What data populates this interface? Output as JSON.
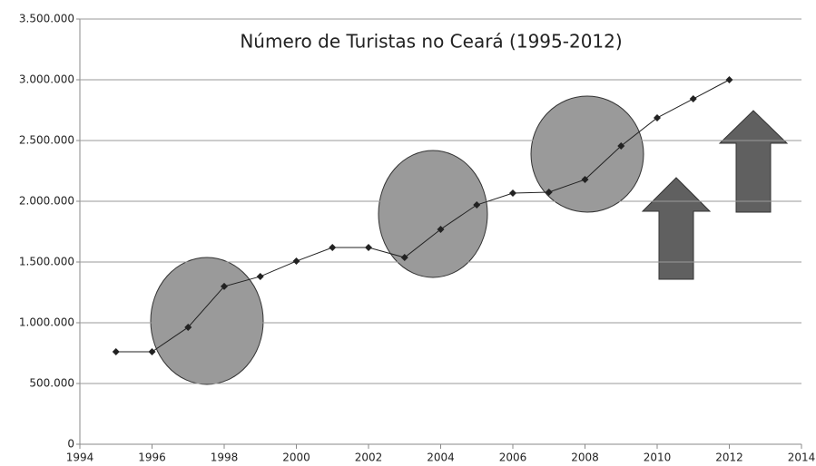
{
  "chart_data": {
    "type": "line",
    "title": "Número de Turistas no Ceará (1995-2012)",
    "x": [
      1995,
      1996,
      1997,
      1998,
      1999,
      2000,
      2001,
      2002,
      2003,
      2004,
      2005,
      2006,
      2007,
      2008,
      2009,
      2010,
      2011,
      2012
    ],
    "values": [
      761000,
      761000,
      963000,
      1299000,
      1381000,
      1507000,
      1619000,
      1619000,
      1537000,
      1769000,
      1970000,
      2067000,
      2075000,
      2179000,
      2455000,
      2687000,
      2843000,
      3000000
    ],
    "color": "#222222",
    "xlim": [
      1994,
      2014
    ],
    "xticks": [
      1994,
      1996,
      1998,
      2000,
      2002,
      2004,
      2006,
      2008,
      2010,
      2012,
      2014
    ],
    "ylim": [
      0,
      3500000
    ],
    "yticks": [
      0,
      {
        "value": 500000,
        "label": "500.000"
      },
      {
        "value": 1000000,
        "label": "1.000.000"
      },
      {
        "value": 1500000,
        "label": "1.500.000"
      },
      {
        "value": 2000000,
        "label": "2.000.000"
      },
      {
        "value": 2500000,
        "label": "2.500.000"
      },
      {
        "value": 3000000,
        "label": "3.000.000"
      },
      {
        "value": 3500000,
        "label": "3.500.000"
      }
    ],
    "grid": true
  }
}
